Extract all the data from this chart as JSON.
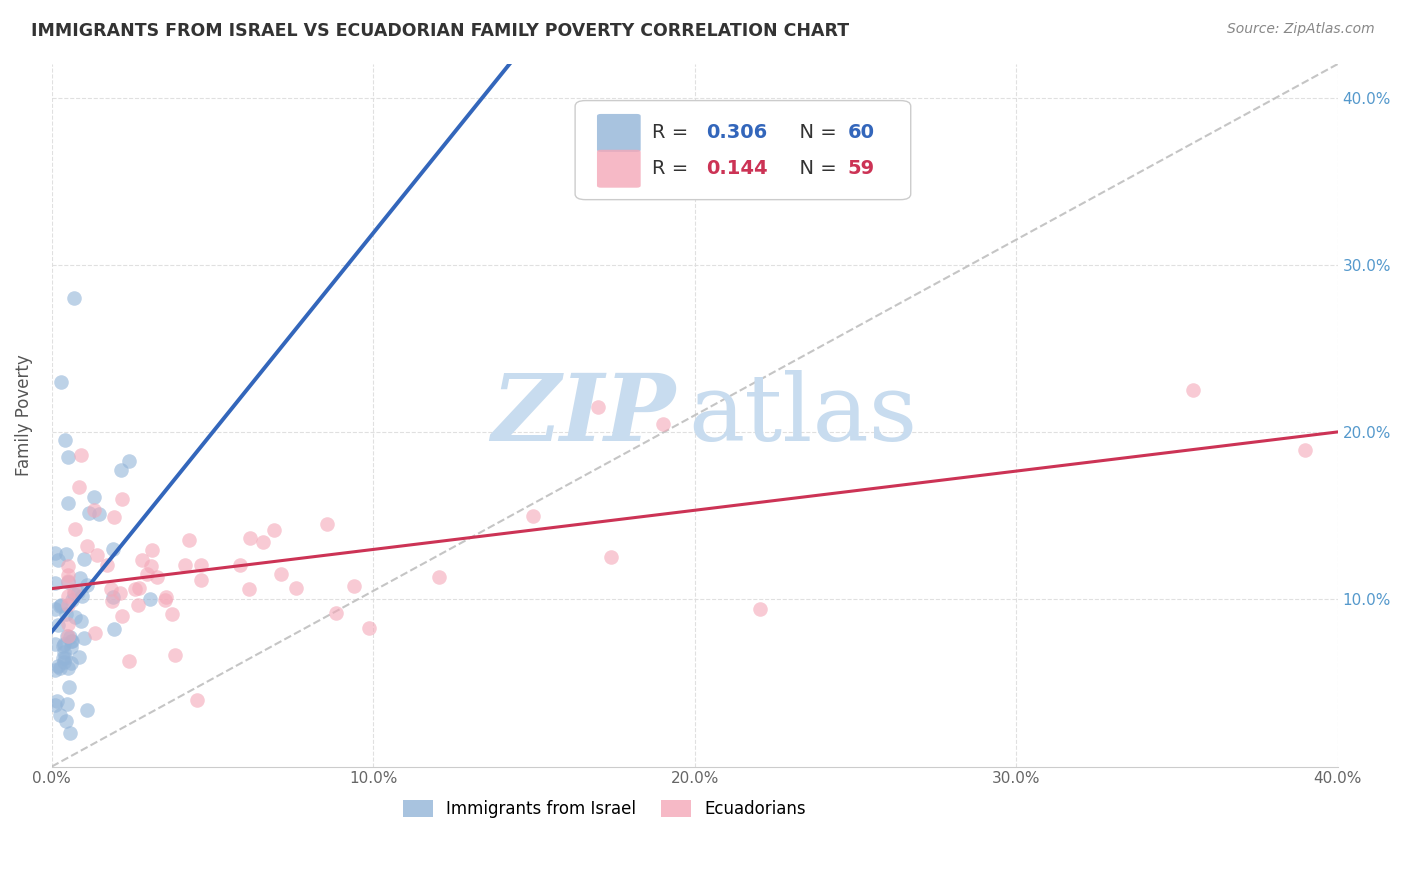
{
  "title": "IMMIGRANTS FROM ISRAEL VS ECUADORIAN FAMILY POVERTY CORRELATION CHART",
  "source": "Source: ZipAtlas.com",
  "ylabel": "Family Poverty",
  "x_min": 0.0,
  "x_max": 0.4,
  "y_min": 0.0,
  "y_max": 0.42,
  "x_ticks": [
    0.0,
    0.1,
    0.2,
    0.3,
    0.4
  ],
  "x_tick_labels": [
    "0.0%",
    "10.0%",
    "20.0%",
    "30.0%",
    "40.0%"
  ],
  "y_ticks": [
    0.1,
    0.2,
    0.3,
    0.4
  ],
  "y_tick_labels": [
    "10.0%",
    "20.0%",
    "30.0%",
    "40.0%"
  ],
  "blue_R": 0.306,
  "blue_N": 60,
  "pink_R": 0.144,
  "pink_N": 59,
  "blue_color": "#92B4D8",
  "pink_color": "#F4A8B8",
  "blue_line_color": "#3366BB",
  "pink_line_color": "#CC3355",
  "legend_label_blue": "Immigrants from Israel",
  "legend_label_pink": "Ecuadorians",
  "blue_R_color": "#3366BB",
  "pink_R_color": "#CC3355",
  "right_tick_color": "#5599CC",
  "grid_color": "#DDDDDD",
  "title_color": "#333333",
  "source_color": "#888888",
  "watermark_zip_color": "#C8DCEF",
  "watermark_atlas_color": "#C8DCEF"
}
